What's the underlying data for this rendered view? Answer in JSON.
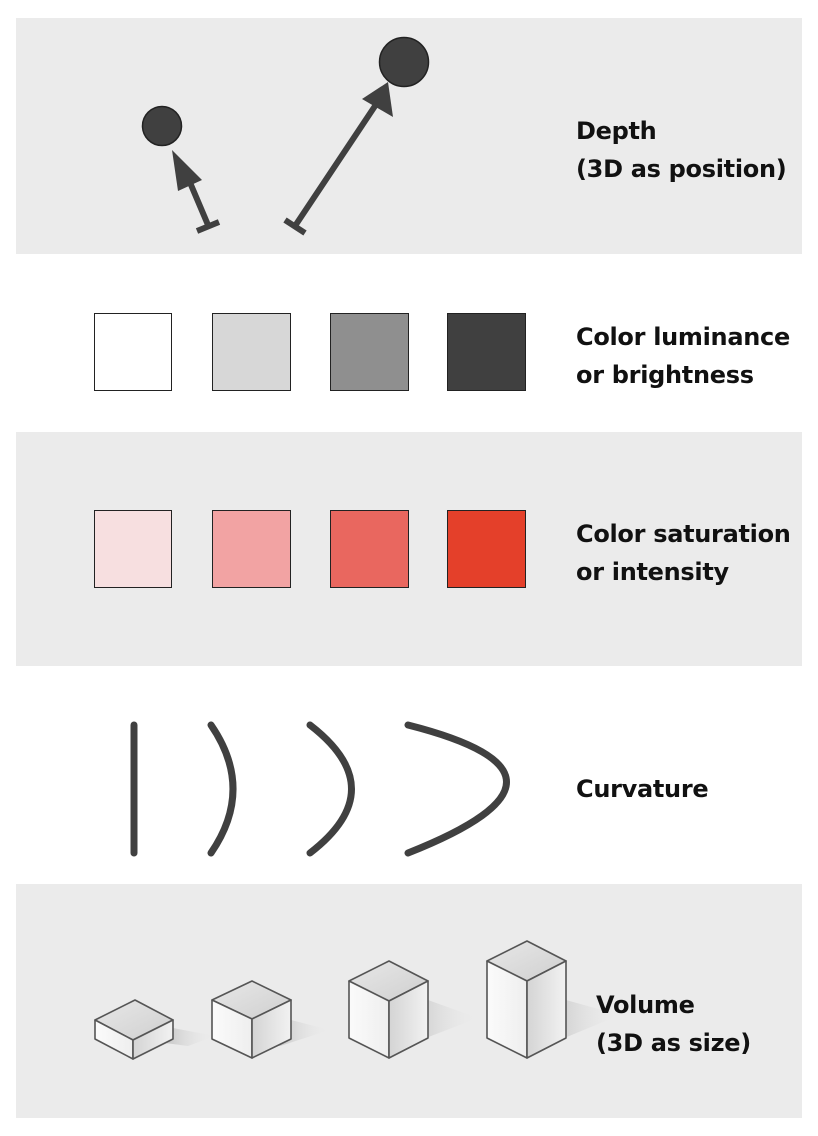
{
  "rows": [
    {
      "id": "depth",
      "lines": [
        "Depth",
        "(3D as position)"
      ]
    },
    {
      "id": "luminance",
      "lines": [
        "Color luminance",
        "or brightness"
      ],
      "colors": [
        "#ffffff",
        "#d7d7d7",
        "#8f8f8f",
        "#404040"
      ]
    },
    {
      "id": "saturation",
      "lines": [
        "Color saturation",
        "or intensity"
      ],
      "colors": [
        "#f7dfe0",
        "#f2a3a3",
        "#e9675f",
        "#e4402a"
      ]
    },
    {
      "id": "curvature",
      "lines": [
        "Curvature"
      ]
    },
    {
      "id": "volume",
      "lines": [
        "Volume",
        "(3D as size)"
      ]
    }
  ],
  "colors": {
    "mark": "#404040",
    "panel": "#ebebeb",
    "stroke": "#222222"
  }
}
